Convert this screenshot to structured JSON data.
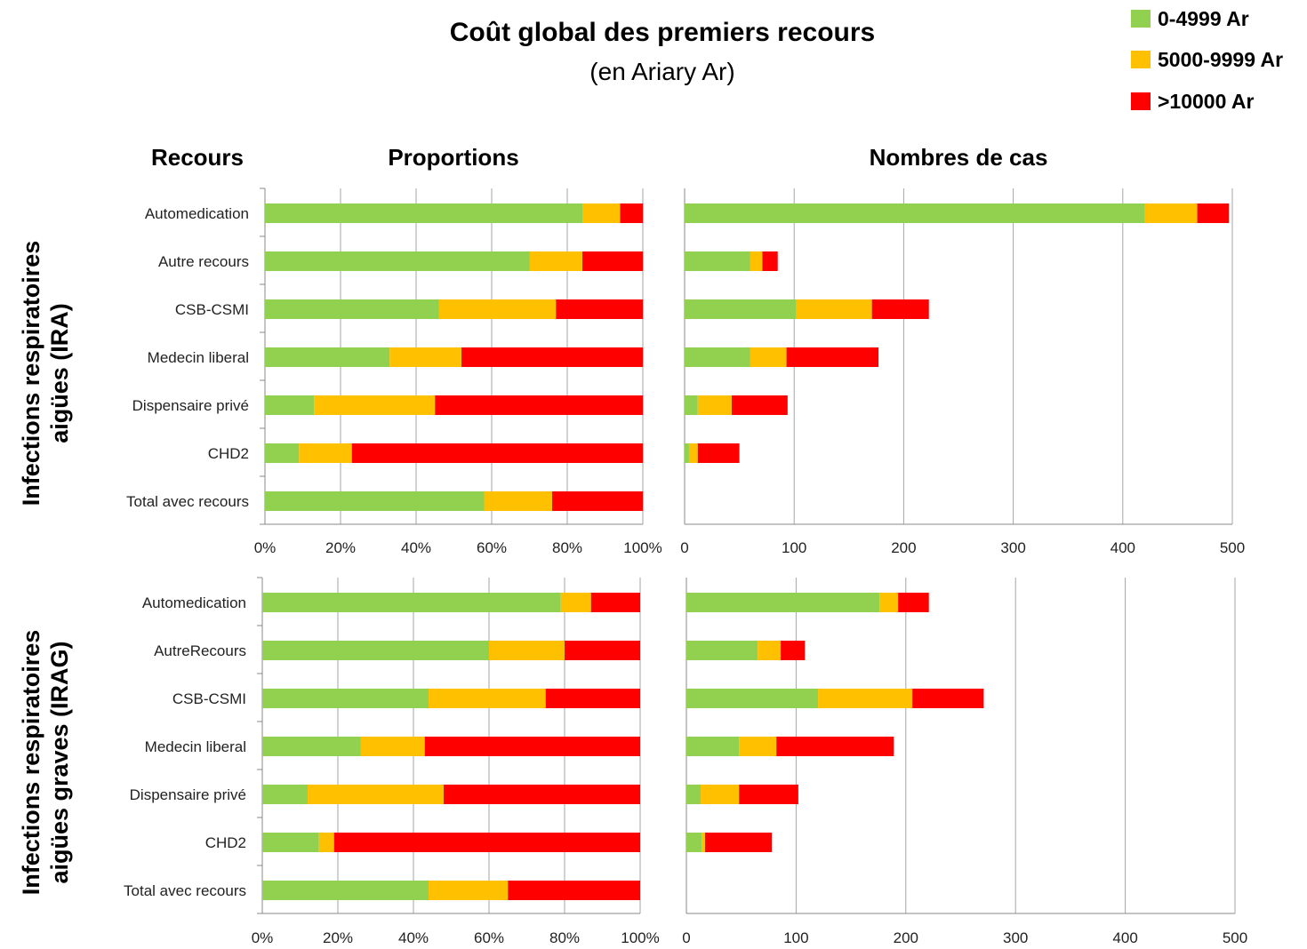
{
  "chart_data": {
    "type": "bar",
    "title": "Coût global des premiers recours",
    "subtitle": "(en Ariary Ar)",
    "column_headers": {
      "recours": "Recours",
      "proportions": "Proportions",
      "counts": "Nombres de cas"
    },
    "legend": [
      {
        "name": "0-4999 Ar",
        "color": "#92d050"
      },
      {
        "name": "5000-9999 Ar",
        "color": "#ffc000"
      },
      {
        "name": ">10000 Ar",
        "color": "#ff0000"
      }
    ],
    "legend_placement": "top-right",
    "grid": true,
    "proportion_ticks": [
      "0%",
      "20%",
      "40%",
      "60%",
      "80%",
      "100%"
    ],
    "count_ticks": [
      "0",
      "100",
      "200",
      "300",
      "400",
      "500"
    ],
    "proportion_xlim": [
      0,
      100
    ],
    "count_xlim": [
      0,
      500
    ],
    "panels": [
      {
        "group_label": "Infections respiratoires aigües (IRA)",
        "group_label_lines": [
          "Infections respiratoires",
          "aigües (IRA)"
        ],
        "categories": [
          "Automedication",
          "Autre recours",
          "CSB-CSMI",
          "Medecin liberal",
          "Dispensaire privé",
          "CHD2",
          "Total avec recours"
        ],
        "proportions": [
          {
            "name": "0-4999 Ar",
            "values": [
              84,
              70,
              46,
              33,
              13,
              9,
              58
            ]
          },
          {
            "name": "5000-9999 Ar",
            "values": [
              10,
              14,
              31,
              19,
              32,
              14,
              18
            ]
          },
          {
            "name": ">10000 Ar",
            "values": [
              6,
              16,
              23,
              48,
              55,
              77,
              24
            ]
          }
        ],
        "counts": [
          {
            "name": "0-4999 Ar",
            "values": [
              420,
              60,
              102,
              60,
              12,
              4,
              null
            ]
          },
          {
            "name": "5000-9999 Ar",
            "values": [
              48,
              11,
              69,
              33,
              31,
              8,
              null
            ]
          },
          {
            "name": ">10000 Ar",
            "values": [
              29,
              14,
              52,
              84,
              51,
              38,
              null
            ]
          }
        ]
      },
      {
        "group_label": "Infections respiratoires aigües graves (IRAG)",
        "group_label_lines": [
          "Infections respiratoires",
          "aigües graves (IRAG)"
        ],
        "categories": [
          "Automedication",
          "AutreRecours",
          "CSB-CSMI",
          "Medecin liberal",
          "Dispensaire privé",
          "CHD2",
          "Total avec recours"
        ],
        "proportions": [
          {
            "name": "0-4999 Ar",
            "values": [
              79,
              60,
              44,
              26,
              12,
              15,
              44
            ]
          },
          {
            "name": "5000-9999 Ar",
            "values": [
              8,
              20,
              31,
              17,
              36,
              4,
              21
            ]
          },
          {
            "name": ">10000 Ar",
            "values": [
              13,
              20,
              25,
              57,
              52,
              81,
              35
            ]
          }
        ],
        "counts": [
          {
            "name": "0-4999 Ar",
            "values": [
              176,
              65,
              120,
              48,
              13,
              14,
              null
            ]
          },
          {
            "name": "5000-9999 Ar",
            "values": [
              17,
              21,
              86,
              34,
              35,
              3,
              null
            ]
          },
          {
            "name": ">10000 Ar",
            "values": [
              28,
              22,
              65,
              107,
              54,
              61,
              null
            ]
          }
        ]
      }
    ]
  }
}
